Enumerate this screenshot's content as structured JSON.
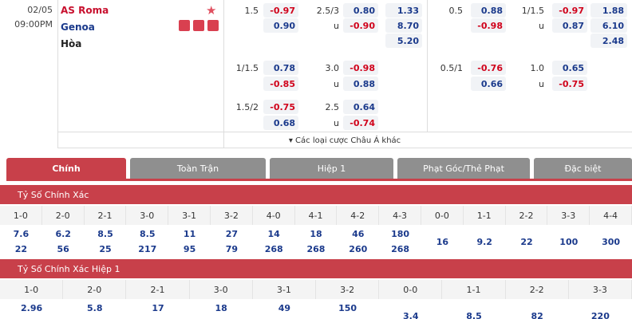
{
  "top": {
    "date": "02/05",
    "time": "09:00PM",
    "home": "AS Roma",
    "away": "Genoa",
    "draw": "Hòa",
    "under_mark": "u",
    "rows": [
      {
        "ft_hdp": {
          "line": "1.5",
          "home": "-0.97",
          "away": "0.90"
        },
        "ft_ou": {
          "line": "2.5/3",
          "over": "0.80",
          "under": "-0.90"
        },
        "ft_1x2": [
          "1.33",
          "8.70",
          "5.20"
        ],
        "ht_hdp": {
          "line": "0.5",
          "home": "0.88",
          "away": "-0.98"
        },
        "ht_ou": {
          "line": "1/1.5",
          "over": "-0.97",
          "under": "0.87"
        },
        "ht_1x2": [
          "1.88",
          "6.10",
          "2.48"
        ]
      },
      {
        "ft_hdp": {
          "line": "1/1.5",
          "home": "0.78",
          "away": "-0.85"
        },
        "ft_ou": {
          "line": "3.0",
          "over": "-0.98",
          "under": "0.88"
        },
        "ht_hdp": {
          "line": "0.5/1",
          "home": "-0.76",
          "away": "0.66"
        },
        "ht_ou": {
          "line": "1.0",
          "over": "0.65",
          "under": "-0.75"
        }
      },
      {
        "ft_hdp": {
          "line": "1.5/2",
          "home": "-0.75",
          "away": "0.68"
        },
        "ft_ou": {
          "line": "2.5",
          "over": "0.64",
          "under": "-0.74"
        }
      }
    ],
    "more": "▾ Các loại cược Châu Á khác"
  },
  "tabs": [
    "Chính",
    "Toàn Trận",
    "Hiệp 1",
    "Phạt Góc/Thẻ Phạt",
    "Đặc biệt"
  ],
  "sections": [
    {
      "title": "Tỷ Số Chính Xác",
      "scores": [
        "1-0",
        "2-0",
        "2-1",
        "3-0",
        "3-1",
        "3-2",
        "4-0",
        "4-1",
        "4-2",
        "4-3",
        "0-0",
        "1-1",
        "2-2",
        "3-3",
        "4-4"
      ],
      "row1": [
        "7.6",
        "6.2",
        "8.5",
        "8.5",
        "11",
        "27",
        "14",
        "18",
        "46",
        "180"
      ],
      "row2": [
        "22",
        "56",
        "25",
        "217",
        "95",
        "79",
        "268",
        "268",
        "260",
        "268"
      ],
      "draws": [
        "16",
        "9.2",
        "22",
        "100",
        "300"
      ]
    },
    {
      "title": "Tỷ Số Chính Xác Hiệp 1",
      "scores": [
        "1-0",
        "2-0",
        "2-1",
        "3-0",
        "3-1",
        "3-2",
        "0-0",
        "1-1",
        "2-2",
        "3-3"
      ],
      "row1": [
        "2.96",
        "5.8",
        "17",
        "18",
        "49",
        "150"
      ],
      "draws": [
        "3.4",
        "8.5",
        "82",
        "220"
      ]
    }
  ]
}
